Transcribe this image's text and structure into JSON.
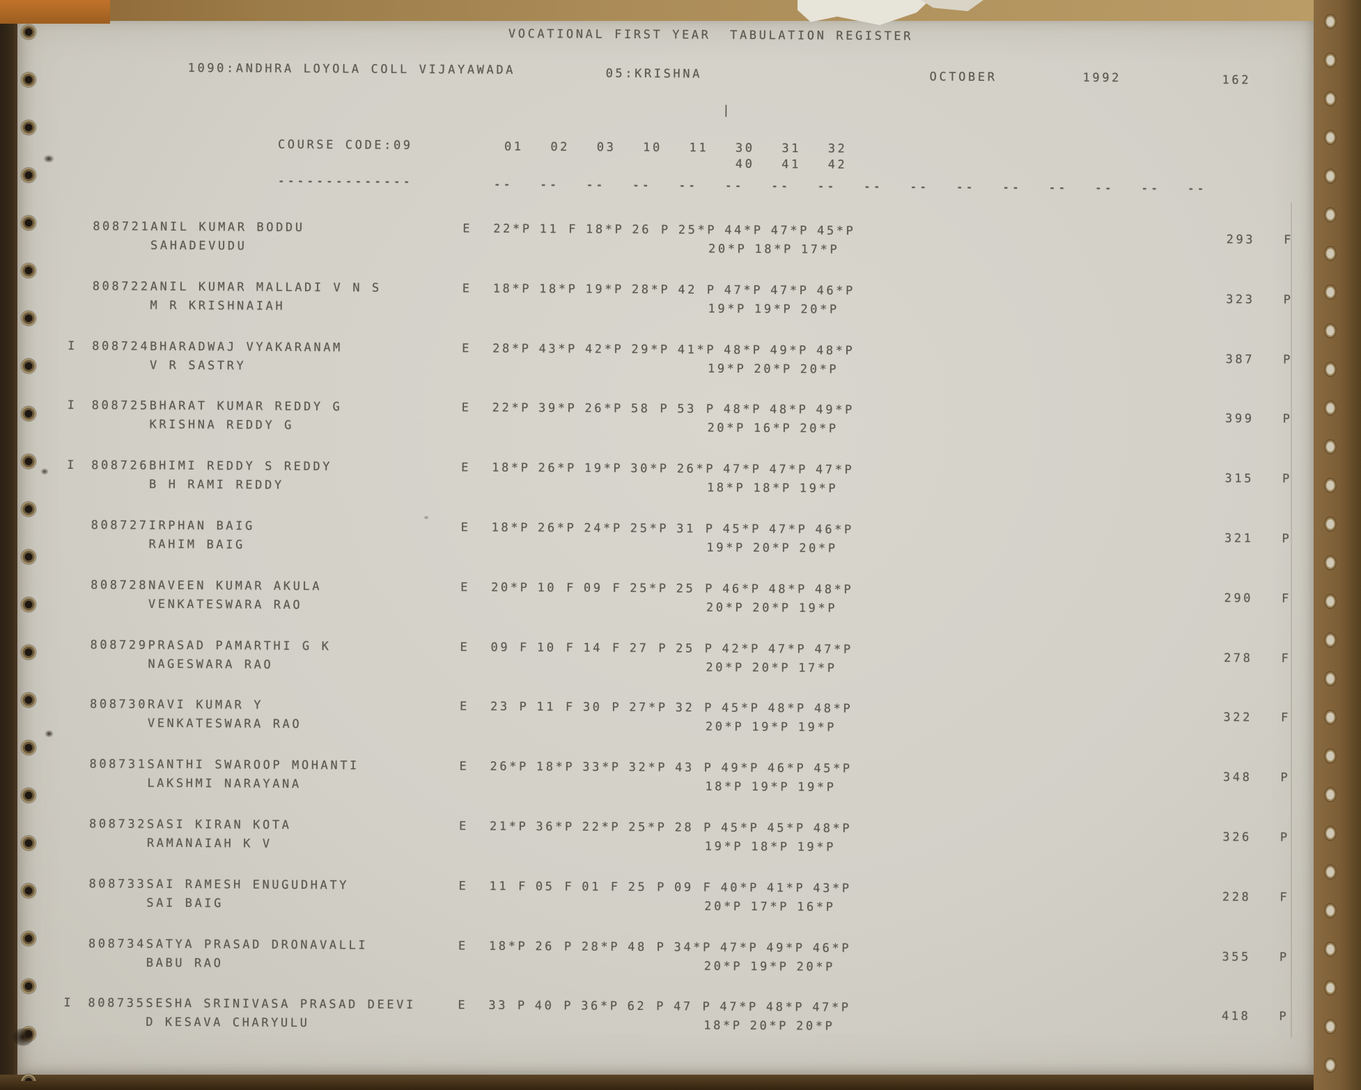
{
  "page": {
    "title": "VOCATIONAL FIRST YEAR  TABULATION REGISTER",
    "college": "1090:ANDHRA LOYOLA COLL VIJAYAWADA",
    "district": "05:KRISHNA",
    "month": "OCTOBER",
    "year": "1992",
    "page_number": "162"
  },
  "course": {
    "label": "COURSE CODE:09",
    "underline": "--------------",
    "stray_tick": "|",
    "columns_row1": [
      "01",
      "02",
      "03",
      "10",
      "11",
      "30",
      "31",
      "32"
    ],
    "columns_row2": [
      "40",
      "41",
      "42"
    ],
    "dash_row": [
      "--",
      "--",
      "--",
      "--",
      "--",
      "--",
      "--",
      "--",
      "--",
      "--",
      "--",
      "--",
      "--",
      "--",
      "--",
      "--"
    ]
  },
  "students": [
    {
      "flag": "",
      "regno": "808721",
      "name": "ANIL KUMAR BODDU",
      "parent": "SAHADEVUDU",
      "medium": "E",
      "marks1": [
        "22*P",
        "11 F",
        "18*P",
        "26 P",
        "25*P",
        "44*P",
        "47*P",
        "45*P"
      ],
      "marks2": [
        "20*P",
        "18*P",
        "17*P"
      ],
      "total": "293",
      "result": "F"
    },
    {
      "flag": "",
      "regno": "808722",
      "name": "ANIL KUMAR MALLADI V N S",
      "parent": "M R KRISHNAIAH",
      "medium": "E",
      "marks1": [
        "18*P",
        "18*P",
        "19*P",
        "28*P",
        "42 P",
        "47*P",
        "47*P",
        "46*P"
      ],
      "marks2": [
        "19*P",
        "19*P",
        "20*P"
      ],
      "total": "323",
      "result": "P"
    },
    {
      "flag": "I",
      "regno": "808724",
      "name": "BHARADWAJ VYAKARANAM",
      "parent": "V R SASTRY",
      "medium": "E",
      "marks1": [
        "28*P",
        "43*P",
        "42*P",
        "29*P",
        "41*P",
        "48*P",
        "49*P",
        "48*P"
      ],
      "marks2": [
        "19*P",
        "20*P",
        "20*P"
      ],
      "total": "387",
      "result": "P"
    },
    {
      "flag": "I",
      "regno": "808725",
      "name": "BHARAT KUMAR REDDY G",
      "parent": "KRISHNA REDDY G",
      "medium": "E",
      "marks1": [
        "22*P",
        "39*P",
        "26*P",
        "58 P",
        "53 P",
        "48*P",
        "48*P",
        "49*P"
      ],
      "marks2": [
        "20*P",
        "16*P",
        "20*P"
      ],
      "total": "399",
      "result": "P"
    },
    {
      "flag": "I",
      "regno": "808726",
      "name": "BHIMI REDDY S REDDY",
      "parent": "B H RAMI REDDY",
      "medium": "E",
      "marks1": [
        "18*P",
        "26*P",
        "19*P",
        "30*P",
        "26*P",
        "47*P",
        "47*P",
        "47*P"
      ],
      "marks2": [
        "18*P",
        "18*P",
        "19*P"
      ],
      "total": "315",
      "result": "P"
    },
    {
      "flag": "",
      "regno": "808727",
      "name": "IRPHAN BAIG",
      "parent": "RAHIM BAIG",
      "medium": "E",
      "marks1": [
        "18*P",
        "26*P",
        "24*P",
        "25*P",
        "31 P",
        "45*P",
        "47*P",
        "46*P"
      ],
      "marks2": [
        "19*P",
        "20*P",
        "20*P"
      ],
      "total": "321",
      "result": "P"
    },
    {
      "flag": "",
      "regno": "808728",
      "name": "NAVEEN KUMAR AKULA",
      "parent": "VENKATESWARA RAO",
      "medium": "E",
      "marks1": [
        "20*P",
        "10 F",
        "09 F",
        "25*P",
        "25 P",
        "46*P",
        "48*P",
        "48*P"
      ],
      "marks2": [
        "20*P",
        "20*P",
        "19*P"
      ],
      "total": "290",
      "result": "F"
    },
    {
      "flag": "",
      "regno": "808729",
      "name": "PRASAD PAMARTHI G K",
      "parent": "NAGESWARA RAO",
      "medium": "E",
      "marks1": [
        "09 F",
        "10 F",
        "14 F",
        "27 P",
        "25 P",
        "42*P",
        "47*P",
        "47*P"
      ],
      "marks2": [
        "20*P",
        "20*P",
        "17*P"
      ],
      "total": "278",
      "result": "F"
    },
    {
      "flag": "",
      "regno": "808730",
      "name": "RAVI KUMAR Y",
      "parent": "VENKATESWARA RAO",
      "medium": "E",
      "marks1": [
        "23 P",
        "11 F",
        "30 P",
        "27*P",
        "32 P",
        "45*P",
        "48*P",
        "48*P"
      ],
      "marks2": [
        "20*P",
        "19*P",
        "19*P"
      ],
      "total": "322",
      "result": "F"
    },
    {
      "flag": "",
      "regno": "808731",
      "name": "SANTHI SWAROOP MOHANTI",
      "parent": "LAKSHMI NARAYANA",
      "medium": "E",
      "marks1": [
        "26*P",
        "18*P",
        "33*P",
        "32*P",
        "43 P",
        "49*P",
        "46*P",
        "45*P"
      ],
      "marks2": [
        "18*P",
        "19*P",
        "19*P"
      ],
      "total": "348",
      "result": "P"
    },
    {
      "flag": "",
      "regno": "808732",
      "name": "SASI KIRAN KOTA",
      "parent": "RAMANAIAH K V",
      "medium": "E",
      "marks1": [
        "21*P",
        "36*P",
        "22*P",
        "25*P",
        "28 P",
        "45*P",
        "45*P",
        "48*P"
      ],
      "marks2": [
        "19*P",
        "18*P",
        "19*P"
      ],
      "total": "326",
      "result": "P"
    },
    {
      "flag": "",
      "regno": "808733",
      "name": "SAI RAMESH ENUGUDHATY",
      "parent": "SAI BAIG",
      "medium": "E",
      "marks1": [
        "11 F",
        "05 F",
        "01 F",
        "25 P",
        "09 F",
        "40*P",
        "41*P",
        "43*P"
      ],
      "marks2": [
        "20*P",
        "17*P",
        "16*P"
      ],
      "total": "228",
      "result": "F"
    },
    {
      "flag": "",
      "regno": "808734",
      "name": "SATYA PRASAD DRONAVALLI",
      "parent": "BABU RAO",
      "medium": "E",
      "marks1": [
        "18*P",
        "26 P",
        "28*P",
        "48 P",
        "34*P",
        "47*P",
        "49*P",
        "46*P"
      ],
      "marks2": [
        "20*P",
        "19*P",
        "20*P"
      ],
      "total": "355",
      "result": "P"
    },
    {
      "flag": "I",
      "regno": "808735",
      "name": "SESHA SRINIVASA PRASAD DEEVI",
      "parent": "D KESAVA CHARYULU",
      "medium": "E",
      "marks1": [
        "33 P",
        "40 P",
        "36*P",
        "62 P",
        "47 P",
        "47*P",
        "48*P",
        "47*P"
      ],
      "marks2": [
        "18*P",
        "20*P",
        "20*P"
      ],
      "total": "418",
      "result": "P"
    }
  ]
}
